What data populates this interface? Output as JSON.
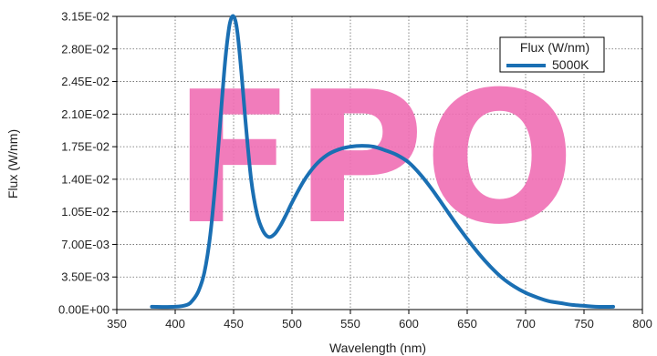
{
  "chart_data": {
    "type": "line",
    "title": "",
    "xlabel": "Wavelength (nm)",
    "ylabel": "Flux (W/nm)",
    "xlim": [
      350,
      800
    ],
    "ylim": [
      0,
      0.0315
    ],
    "x_ticks": [
      350,
      400,
      450,
      500,
      550,
      600,
      650,
      700,
      750,
      800
    ],
    "x_tick_labels": [
      "350",
      "400",
      "450",
      "500",
      "550",
      "600",
      "650",
      "700",
      "750",
      "800"
    ],
    "y_ticks": [
      0,
      0.0035,
      0.007,
      0.0105,
      0.014,
      0.0175,
      0.021,
      0.0245,
      0.028,
      0.0315
    ],
    "y_tick_labels": [
      "0.00E+00",
      "3.50E-03",
      "7.00E-03",
      "1.05E-02",
      "1.40E-02",
      "1.75E-02",
      "2.10E-02",
      "2.45E-02",
      "2.80E-02",
      "3.15E-02"
    ],
    "grid": true,
    "legend": {
      "title": "Flux (W/nm)",
      "placement": "top-right"
    },
    "series": [
      {
        "name": "5000K",
        "color": "#1a6fb3",
        "x": [
          380,
          400,
          410,
          415,
          420,
          425,
          430,
          435,
          440,
          443,
          446,
          448,
          450,
          452,
          454,
          457,
          460,
          465,
          470,
          475,
          480,
          485,
          490,
          495,
          500,
          510,
          520,
          530,
          540,
          550,
          560,
          570,
          580,
          590,
          600,
          610,
          620,
          630,
          640,
          650,
          660,
          670,
          680,
          690,
          700,
          710,
          720,
          730,
          740,
          750,
          760,
          775
        ],
        "y": [
          0.0003,
          0.0003,
          0.0005,
          0.001,
          0.002,
          0.004,
          0.008,
          0.0145,
          0.0225,
          0.027,
          0.0302,
          0.0313,
          0.0315,
          0.0308,
          0.029,
          0.025,
          0.0205,
          0.014,
          0.0103,
          0.0085,
          0.0078,
          0.0081,
          0.009,
          0.0102,
          0.0115,
          0.0138,
          0.0155,
          0.0166,
          0.0172,
          0.0175,
          0.0176,
          0.0175,
          0.0171,
          0.0166,
          0.0158,
          0.0145,
          0.0129,
          0.0111,
          0.0093,
          0.0076,
          0.006,
          0.0046,
          0.0034,
          0.0025,
          0.0018,
          0.0013,
          0.0009,
          0.0007,
          0.0005,
          0.0004,
          0.0003,
          0.0003
        ]
      }
    ]
  },
  "watermark": {
    "text": "FPO",
    "color": "#f06eb4"
  }
}
